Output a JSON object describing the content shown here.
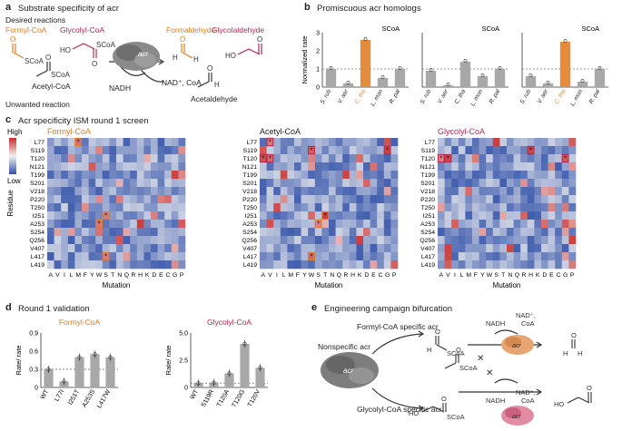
{
  "panel_a": {
    "letter": "a",
    "title": "Substrate specificity of acr",
    "desired": "Desired reactions",
    "unwanted": "Unwanted reaction",
    "formyl_coa": "Formyl-CoA",
    "glycolyl_coa": "Glycolyl-CoA",
    "acetyl_coa": "Acetyl-CoA",
    "nadh": "NADH",
    "nad_coa": "NAD⁺, CoA",
    "enzyme": "acr",
    "formaldehyde": "Formaldehyde",
    "glycolaldehyde": "Glycolaldehyde",
    "acetaldehyde": "Acetaldehyde",
    "scoa": "SCoA",
    "o": "O",
    "ho": "HO",
    "h": "H"
  },
  "panel_b": {
    "letter": "b",
    "title": "Promiscuous acr homologs",
    "ylabel": "Normalized rate",
    "yticks": [
      "3",
      "2",
      "1",
      "0"
    ],
    "subtitles": [
      "SCoA",
      "SCoA",
      "SCoA"
    ],
    "chart_data": [
      {
        "type": "bar",
        "substrate": "Formyl-CoA",
        "categories": [
          "S. rub",
          "V. aer",
          "C. tha",
          "L. mon",
          "R. pal"
        ],
        "values": [
          1.0,
          0.2,
          2.6,
          0.5,
          1.0
        ],
        "ylim": [
          0,
          3
        ],
        "highlight": "C. tha"
      },
      {
        "type": "bar",
        "substrate": "Acetyl-CoA",
        "categories": [
          "S. rub",
          "V. aer",
          "C. tha",
          "L. mon",
          "R. pal"
        ],
        "values": [
          0.9,
          0.1,
          1.4,
          0.6,
          1.0
        ],
        "ylim": [
          0,
          3
        ]
      },
      {
        "type": "bar",
        "substrate": "Glycolyl-CoA",
        "categories": [
          "S. rub",
          "V. aer",
          "C. tha",
          "L. mon",
          "R. pal"
        ],
        "values": [
          0.6,
          0.2,
          2.5,
          0.3,
          1.0
        ],
        "ylim": [
          0,
          3
        ],
        "highlight": "C. tha"
      }
    ],
    "colors": {
      "bar": "#a8a8a8",
      "highlight": "#e58b3c",
      "glycolyl": "#b52850"
    }
  },
  "panel_c": {
    "letter": "c",
    "title": "Acr specificity ISM round 1 screen",
    "ylabel": "Residue",
    "xlabel": "Mutation",
    "legend_high": "High",
    "legend_low": "Low",
    "residues": [
      "L77",
      "S119",
      "T120",
      "N121",
      "T199",
      "S201",
      "V218",
      "P220",
      "T250",
      "I251",
      "A253",
      "S254",
      "Q256",
      "V407",
      "L417",
      "L419"
    ],
    "mutations": [
      "A",
      "V",
      "I",
      "L",
      "M",
      "F",
      "Y",
      "W",
      "S",
      "T",
      "N",
      "Q",
      "R",
      "H",
      "K",
      "D",
      "E",
      "C",
      "G",
      "P"
    ],
    "maps": [
      {
        "title": "Formyl-CoA",
        "hits": [
          [
            0,
            4
          ],
          [
            9,
            8
          ],
          [
            10,
            7
          ],
          [
            14,
            8
          ]
        ]
      },
      {
        "title": "Acetyl-CoA",
        "hits": [
          [
            0,
            1
          ],
          [
            1,
            7
          ],
          [
            2,
            0
          ],
          [
            2,
            1
          ],
          [
            1,
            18
          ],
          [
            9,
            9
          ],
          [
            10,
            8
          ],
          [
            14,
            7
          ]
        ]
      },
      {
        "title": "Glycolyl-CoA",
        "hits": [
          [
            1,
            13
          ],
          [
            2,
            0
          ],
          [
            2,
            1
          ],
          [
            2,
            18
          ]
        ]
      }
    ],
    "star": "*"
  },
  "panel_d": {
    "letter": "d",
    "title": "Round 1 validation",
    "ylabel": "Rate",
    "ylabel_ratio": "/ rate",
    "chart_data": [
      {
        "type": "bar",
        "title": "Formyl-CoA",
        "categories": [
          "WT",
          "L77I",
          "I251T",
          "A253S",
          "L417W"
        ],
        "values": [
          0.3,
          0.1,
          0.5,
          0.55,
          0.5
        ],
        "ylim": [
          0,
          0.9
        ],
        "yticks": [
          "0.9",
          "0.6",
          "0.3",
          "0"
        ],
        "dashed": 0.3
      },
      {
        "type": "bar",
        "title": "Glycolyl-CoA",
        "categories": [
          "WT",
          "S119R",
          "T120A",
          "T120G",
          "T120V"
        ],
        "values": [
          0.4,
          0.45,
          1.3,
          4.0,
          1.8
        ],
        "ylim": [
          0,
          5
        ],
        "yticks": [
          "5.0",
          "2.5",
          "0"
        ],
        "dashed": 0.4
      }
    ]
  },
  "panel_e": {
    "letter": "e",
    "title": "Engineering campaign bifurcation",
    "nonspecific": "Nonspecific acr",
    "formyl_specific": "Formyl-CoA specific acr",
    "glycolyl_specific": "Glycolyl-CoA specific acr",
    "enzyme": "acr",
    "nadh": "NADH",
    "nad": "NAD⁺,",
    "coa": "CoA",
    "cross": "✕",
    "scoa": "SCoA",
    "o": "O",
    "ho": "HO",
    "h": "H"
  }
}
